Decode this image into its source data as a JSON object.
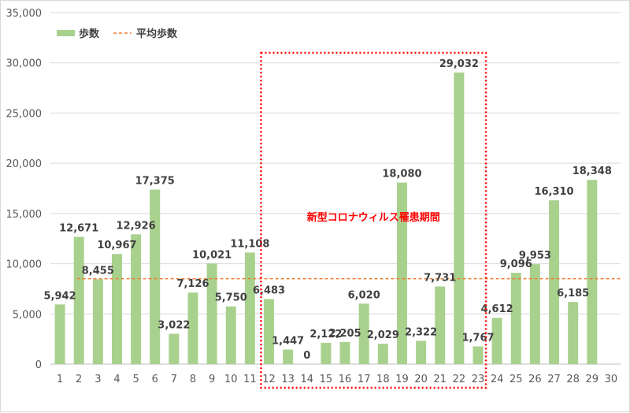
{
  "chart_data": {
    "type": "bar",
    "categories": [
      "1",
      "2",
      "3",
      "4",
      "5",
      "6",
      "7",
      "8",
      "9",
      "10",
      "11",
      "12",
      "13",
      "14",
      "15",
      "16",
      "17",
      "18",
      "19",
      "20",
      "21",
      "22",
      "23",
      "24",
      "25",
      "26",
      "27",
      "28",
      "29",
      "30"
    ],
    "series": [
      {
        "name": "歩数",
        "type": "bar",
        "values": [
          5942,
          12671,
          8455,
          10967,
          12926,
          17375,
          3022,
          7126,
          10021,
          5750,
          11108,
          6483,
          1447,
          0,
          2122,
          2205,
          6020,
          2029,
          18080,
          2322,
          7731,
          29032,
          1767,
          4612,
          9096,
          9953,
          16310,
          6185,
          18348,
          null
        ],
        "data_labels": [
          "5,942",
          "12,671",
          "8,455",
          "10,967",
          "12,926",
          "17,375",
          "3,022",
          "7,126",
          "10,021",
          "5,750",
          "11,108",
          "6,483",
          "1,447",
          "0",
          "2,122",
          "2,205",
          "6,020",
          "2,029",
          "18,080",
          "2,322",
          "7,731",
          "29,032",
          "1,767",
          "4,612",
          "9,096",
          "9,953",
          "16,310",
          "6,185",
          "18,348",
          ""
        ],
        "color": "#a9d18e"
      },
      {
        "name": "平均歩数",
        "type": "line",
        "style": "dashed",
        "value": 8500,
        "color": "#ed7d31"
      }
    ],
    "ylim": [
      0,
      35000
    ],
    "yticks": [
      0,
      5000,
      10000,
      15000,
      20000,
      25000,
      30000,
      35000
    ],
    "ytick_labels": [
      "0",
      "5,000",
      "10,000",
      "15,000",
      "20,000",
      "25,000",
      "30,000",
      "35,000"
    ],
    "grid": true,
    "legend_position": "top-left",
    "annotation": {
      "text": "新型コロナウィルス罹患期間",
      "from_category": "12",
      "to_category": "23",
      "color": "#ff0000"
    }
  }
}
